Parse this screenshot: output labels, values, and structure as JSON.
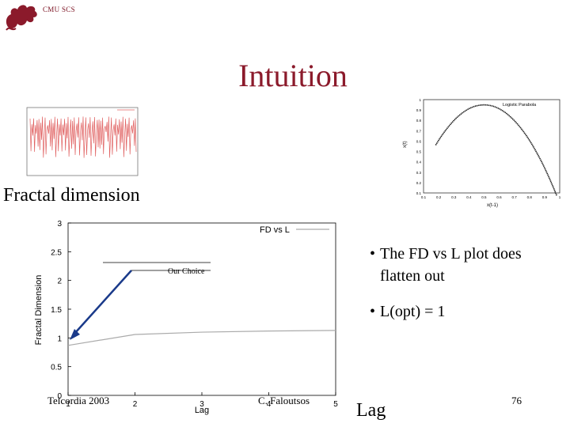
{
  "header": {
    "org": "CMU SCS",
    "title": "Intuition"
  },
  "left_thumb": {
    "label": "Fractal dimension"
  },
  "right_thumb": {
    "title": "Logistic Parabola",
    "ylabel": "x(t)",
    "xlabel": "x(t-1)",
    "yticks": [
      "1",
      "0.9",
      "0.8",
      "0.7",
      "0.6",
      "0.5",
      "0.4",
      "0.3",
      "0.2",
      "0.1"
    ],
    "xticks": [
      "0.1",
      "0.2",
      "0.3",
      "0.4",
      "0.5",
      "0.6",
      "0.7",
      "0.8",
      "0.9",
      "1"
    ]
  },
  "chart_data": {
    "type": "line",
    "ylabel": "Fractal Dimension",
    "xlabel": "Lag",
    "ylim": [
      0,
      3
    ],
    "xlim": [
      1,
      5
    ],
    "yticks": [
      "0",
      "0.5",
      "1",
      "1.5",
      "2",
      "2.5",
      "3"
    ],
    "xticks": [
      "1",
      "2",
      "3",
      "4",
      "5"
    ],
    "series": [
      {
        "name": "FD vs L",
        "x": [
          1,
          2,
          3,
          4,
          5
        ],
        "values": [
          0.87,
          1.06,
          1.1,
          1.12,
          1.13
        ]
      }
    ],
    "annotation": "Our Choice",
    "legend_position": "top-right",
    "colors": {
      "line": "#aaaaaa",
      "arrow": "#1a3a8a"
    }
  },
  "bullets": [
    {
      "mark": "•",
      "text": "The FD vs L plot does flatten out"
    },
    {
      "mark": "•",
      "text": "L(opt) = 1"
    }
  ],
  "footer": {
    "left": "Telcordia 2003",
    "center": "C. Faloutsos",
    "lag": "Lag",
    "page": "76"
  }
}
